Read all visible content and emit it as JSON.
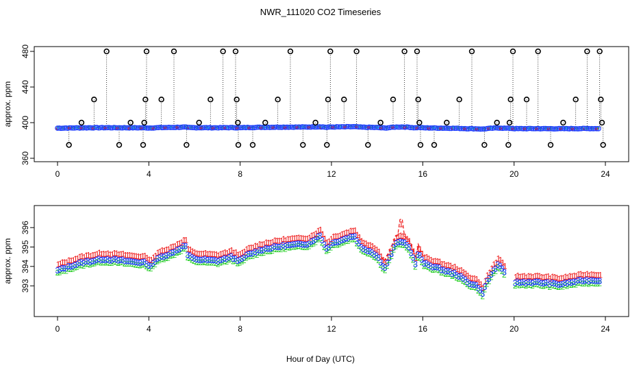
{
  "figure": {
    "title": "NWR_111020  CO2 Timeseries",
    "xlabel": "Hour of Day (UTC)"
  },
  "chart_data": [
    {
      "type": "scatter",
      "ylabel": "approx. ppm",
      "xlim": [
        0,
        24
      ],
      "ylim": [
        360,
        480
      ],
      "xticks": [
        "0",
        "4",
        "8",
        "12",
        "16",
        "20",
        "24"
      ],
      "yticks": [
        "360",
        "400",
        "440",
        "480"
      ],
      "colors": {
        "marker": "#000000",
        "series_blue": "#1f3fff",
        "series_green": "#22cc22",
        "series_red": "#ee1111",
        "series_cyan": "#22dddd"
      },
      "curve": [
        [
          0.0,
          394.3
        ],
        [
          1.0,
          394.6
        ],
        [
          2.0,
          394.9
        ],
        [
          3.0,
          394.8
        ],
        [
          3.9,
          394.9
        ],
        [
          4.0,
          395.9
        ],
        [
          4.2,
          394.4
        ],
        [
          5.0,
          394.8
        ],
        [
          5.6,
          395.4
        ],
        [
          5.7,
          394.7
        ],
        [
          6.5,
          394.5
        ],
        [
          7.5,
          394.6
        ],
        [
          8.0,
          395.0
        ],
        [
          9.0,
          395.0
        ],
        [
          10.0,
          395.3
        ],
        [
          11.0,
          395.4
        ],
        [
          11.5,
          395.7
        ],
        [
          12.0,
          394.9
        ],
        [
          12.5,
          395.4
        ],
        [
          13.0,
          395.6
        ],
        [
          13.5,
          395.1
        ],
        [
          14.0,
          394.5
        ],
        [
          14.5,
          394.7
        ],
        [
          15.0,
          396.1
        ],
        [
          15.5,
          395.2
        ],
        [
          16.0,
          394.2
        ],
        [
          17.0,
          393.9
        ],
        [
          18.0,
          393.4
        ],
        [
          18.5,
          392.9
        ],
        [
          19.0,
          393.8
        ],
        [
          19.5,
          393.6
        ],
        [
          20.0,
          393.3
        ],
        [
          21.0,
          393.3
        ],
        [
          22.0,
          393.2
        ],
        [
          23.0,
          393.4
        ],
        [
          23.7,
          393.5
        ]
      ],
      "spikes": [
        [
          0.5,
          375
        ],
        [
          1.05,
          400
        ],
        [
          1.6,
          426
        ],
        [
          2.15,
          480
        ],
        [
          2.7,
          375
        ],
        [
          3.2,
          400
        ],
        [
          3.75,
          375
        ],
        [
          3.8,
          400
        ],
        [
          3.85,
          426
        ],
        [
          3.9,
          480
        ],
        [
          4.55,
          426
        ],
        [
          5.1,
          480
        ],
        [
          5.65,
          375
        ],
        [
          6.2,
          400
        ],
        [
          6.7,
          426
        ],
        [
          7.25,
          480
        ],
        [
          7.8,
          480
        ],
        [
          7.85,
          426
        ],
        [
          7.9,
          400
        ],
        [
          7.92,
          375
        ],
        [
          8.55,
          375
        ],
        [
          9.1,
          400
        ],
        [
          9.65,
          426
        ],
        [
          10.2,
          480
        ],
        [
          10.75,
          375
        ],
        [
          11.3,
          400
        ],
        [
          11.8,
          375
        ],
        [
          11.85,
          426
        ],
        [
          11.95,
          480
        ],
        [
          12.55,
          426
        ],
        [
          13.1,
          480
        ],
        [
          13.6,
          375
        ],
        [
          14.15,
          400
        ],
        [
          14.7,
          426
        ],
        [
          15.2,
          480
        ],
        [
          15.75,
          480
        ],
        [
          15.8,
          426
        ],
        [
          15.85,
          400
        ],
        [
          15.9,
          375
        ],
        [
          16.5,
          375
        ],
        [
          17.05,
          400
        ],
        [
          17.6,
          426
        ],
        [
          18.15,
          480
        ],
        [
          18.7,
          375
        ],
        [
          19.25,
          400
        ],
        [
          19.75,
          375
        ],
        [
          19.8,
          400
        ],
        [
          19.85,
          426
        ],
        [
          19.95,
          480
        ],
        [
          20.55,
          426
        ],
        [
          21.05,
          480
        ],
        [
          21.6,
          375
        ],
        [
          22.15,
          400
        ],
        [
          22.7,
          426
        ],
        [
          23.2,
          480
        ],
        [
          23.75,
          480
        ],
        [
          23.8,
          426
        ],
        [
          23.85,
          400
        ],
        [
          23.9,
          375
        ]
      ]
    },
    {
      "type": "scatter",
      "ylabel": "approx. ppm",
      "xlim": [
        0,
        24
      ],
      "ylim": [
        392.3,
        396.5
      ],
      "xticks": [
        "0",
        "4",
        "8",
        "12",
        "16",
        "20",
        "24"
      ],
      "yticks": [
        "393",
        "394",
        "395",
        "396"
      ],
      "series": [
        {
          "marker": "1",
          "color": "#ee1111"
        },
        {
          "marker": "2",
          "color": "#22cc22"
        },
        {
          "marker": "3",
          "color": "#1f3fff"
        }
      ],
      "curve": [
        [
          0.0,
          393.8
        ],
        [
          1.0,
          394.2
        ],
        [
          2.0,
          394.4
        ],
        [
          3.0,
          394.3
        ],
        [
          3.9,
          394.2
        ],
        [
          4.0,
          394.0
        ],
        [
          4.5,
          394.5
        ],
        [
          5.0,
          394.7
        ],
        [
          5.6,
          395.1
        ],
        [
          5.7,
          394.6
        ],
        [
          6.0,
          394.4
        ],
        [
          7.0,
          394.3
        ],
        [
          7.6,
          394.5
        ],
        [
          8.0,
          394.3
        ],
        [
          8.3,
          394.6
        ],
        [
          9.0,
          394.9
        ],
        [
          10.0,
          395.1
        ],
        [
          11.0,
          395.2
        ],
        [
          11.5,
          395.6
        ],
        [
          11.8,
          394.9
        ],
        [
          12.0,
          395.2
        ],
        [
          12.5,
          395.4
        ],
        [
          13.0,
          395.6
        ],
        [
          13.3,
          395.0
        ],
        [
          13.7,
          394.8
        ],
        [
          14.0,
          394.6
        ],
        [
          14.3,
          393.9
        ],
        [
          14.6,
          394.6
        ],
        [
          14.8,
          395.2
        ],
        [
          15.1,
          395.3
        ],
        [
          15.4,
          395.0
        ],
        [
          15.7,
          394.1
        ],
        [
          15.8,
          394.8
        ],
        [
          16.0,
          394.2
        ],
        [
          16.5,
          394.0
        ],
        [
          17.0,
          393.8
        ],
        [
          17.5,
          393.6
        ],
        [
          18.0,
          393.2
        ],
        [
          18.4,
          393.0
        ],
        [
          18.6,
          392.6
        ],
        [
          18.8,
          393.2
        ],
        [
          19.1,
          393.8
        ],
        [
          19.3,
          394.1
        ],
        [
          19.6,
          393.7
        ],
        [
          19.9,
          393.5
        ],
        [
          20.0,
          393.2
        ],
        [
          21.0,
          393.2
        ],
        [
          22.0,
          393.1
        ],
        [
          23.0,
          393.3
        ],
        [
          23.7,
          393.3
        ]
      ]
    }
  ]
}
